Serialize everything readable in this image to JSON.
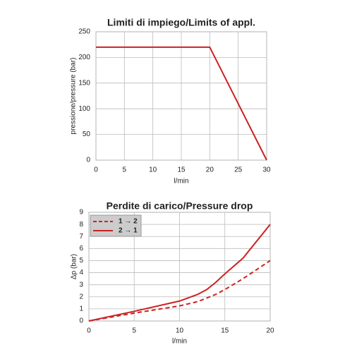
{
  "chart_data": [
    {
      "type": "line",
      "title": "Limiti di impiego/Limits of appl.",
      "x_label": "l/min",
      "y_label": "pressione/pressure (bar)",
      "x": [
        0,
        20,
        30
      ],
      "values": [
        220,
        220,
        0
      ],
      "color": "#cc2222",
      "xlim": [
        0,
        30
      ],
      "ylim": [
        0,
        250
      ],
      "xticks": [
        0,
        5,
        10,
        15,
        20,
        25,
        30
      ],
      "yticks": [
        0,
        50,
        100,
        150,
        200,
        250
      ],
      "grid": true
    },
    {
      "type": "line",
      "title": "Perdite di carico/Pressure drop",
      "x_label": "l/min",
      "y_label": "Δp (bar)",
      "x": [
        0,
        5,
        10,
        12,
        13,
        14,
        15,
        17,
        20
      ],
      "series": [
        {
          "name": "1 → 2",
          "color": "#cc2222",
          "dashed": true,
          "values": [
            0,
            0.65,
            1.25,
            1.6,
            1.9,
            2.2,
            2.6,
            3.5,
            5
          ]
        },
        {
          "name": "2 → 1",
          "color": "#cc2222",
          "dashed": false,
          "values": [
            0,
            0.8,
            1.65,
            2.2,
            2.6,
            3.2,
            3.9,
            5.2,
            8
          ]
        }
      ],
      "xlim": [
        0,
        20
      ],
      "ylim": [
        0,
        9
      ],
      "xticks": [
        0,
        5,
        10,
        15,
        20
      ],
      "yticks": [
        0,
        1,
        2,
        3,
        4,
        5,
        6,
        7,
        8,
        9
      ],
      "grid": true,
      "legend": "top-left"
    }
  ]
}
